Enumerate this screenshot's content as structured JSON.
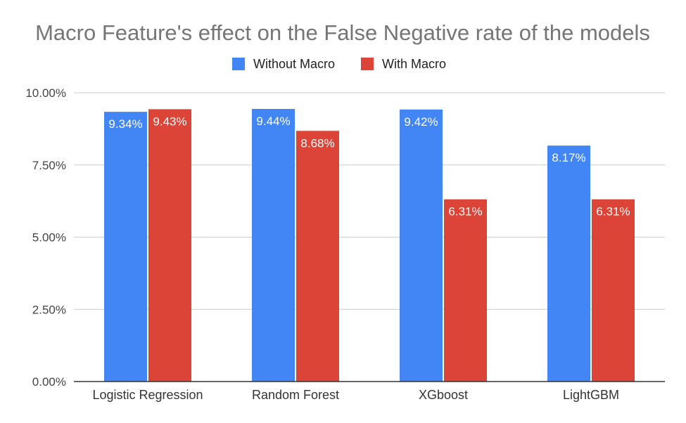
{
  "chart_data": {
    "type": "bar",
    "title": "Macro Feature's effect on the False Negative rate of the models",
    "xlabel": "",
    "ylabel": "",
    "categories": [
      "Logistic Regression",
      "Random Forest",
      "XGboost",
      "LightGBM"
    ],
    "series": [
      {
        "name": "Without Macro",
        "color": "#4285f4",
        "values": [
          9.34,
          9.44,
          9.42,
          8.17
        ],
        "labels": [
          "9.34%",
          "9.44%",
          "9.42%",
          "8.17%"
        ]
      },
      {
        "name": "With Macro",
        "color": "#db4437",
        "values": [
          9.43,
          8.68,
          6.31,
          6.31
        ],
        "labels": [
          "9.43%",
          "8.68%",
          "6.31%",
          "6.31%"
        ]
      }
    ],
    "ylim": [
      0,
      10
    ],
    "yticks": [
      0,
      2.5,
      5,
      7.5,
      10
    ],
    "ytick_labels": [
      "0.00%",
      "2.50%",
      "5.00%",
      "7.50%",
      "10.00%"
    ],
    "legend_position": "top",
    "grid": true
  }
}
